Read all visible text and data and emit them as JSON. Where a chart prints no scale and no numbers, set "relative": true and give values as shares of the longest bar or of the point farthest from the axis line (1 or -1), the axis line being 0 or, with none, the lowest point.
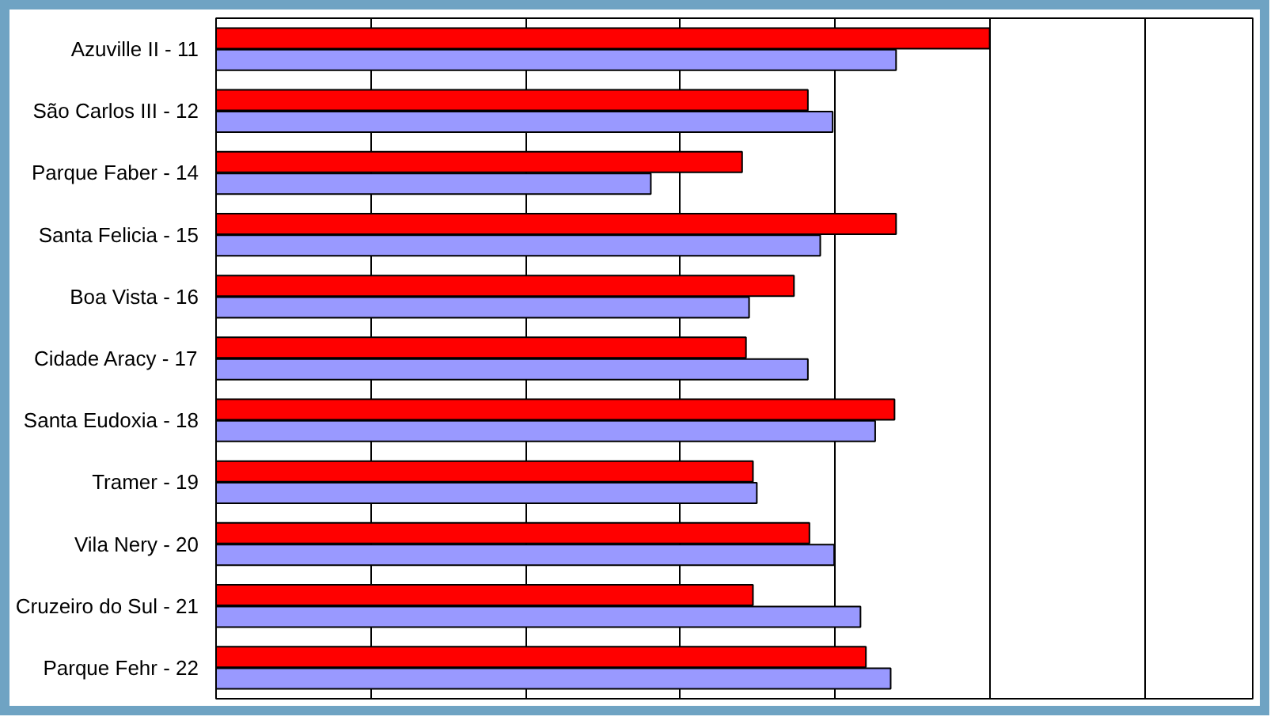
{
  "chart_data": {
    "type": "bar",
    "orientation": "horizontal",
    "relative": true,
    "grid": "x",
    "categories": [
      "Azuville II - 11",
      "São Carlos III - 12",
      "Parque Faber - 14",
      "Santa Felicia - 15",
      "Boa Vista - 16",
      "Cidade Aracy - 17",
      "Santa Eudoxia - 18",
      "Tramer - 19",
      "Vila Nery - 20",
      "Cruzeiro do Sul - 21",
      "Parque Fehr - 22"
    ],
    "series": [
      {
        "color": "#ff0000",
        "values": [
          1,
          0.765,
          0.68,
          0.879,
          0.747,
          0.685,
          0.877,
          0.694,
          0.767,
          0.694,
          0.84
        ]
      },
      {
        "color": "#9999ff",
        "values": [
          0.879,
          0.797,
          0.562,
          0.781,
          0.689,
          0.765,
          0.852,
          0.699,
          0.799,
          0.833,
          0.872
        ]
      }
    ]
  }
}
